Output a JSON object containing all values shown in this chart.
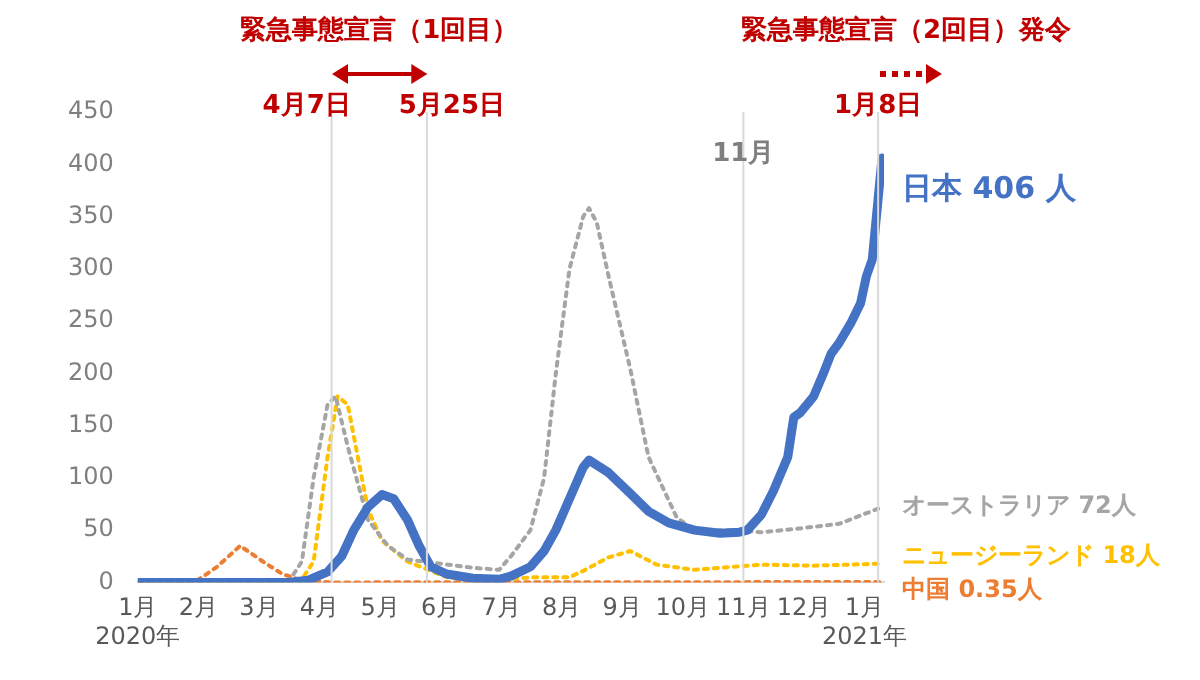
{
  "chart_data": {
    "type": "line",
    "annotations": [
      "緊急事態宣言（1回目）",
      "緊急事態宣言（2回目）発令",
      {
        "text": "11月",
        "x": "2020-11",
        "y": 410
      }
    ],
    "xlim": [
      "2020-01-01",
      "2021-01-11"
    ],
    "xticks": [
      {
        "value": "2020-01",
        "label": "1月\n2020年"
      },
      {
        "value": "2020-02",
        "label": "2月"
      },
      {
        "value": "2020-03",
        "label": "3月"
      },
      {
        "value": "2020-04",
        "label": "4月"
      },
      {
        "value": "2020-05",
        "label": "5月"
      },
      {
        "value": "2020-06",
        "label": "6月"
      },
      {
        "value": "2020-07",
        "label": "7月"
      },
      {
        "value": "2020-08",
        "label": "8月"
      },
      {
        "value": "2020-09",
        "label": "9月"
      },
      {
        "value": "2020-10",
        "label": "10月"
      },
      {
        "value": "2020-11",
        "label": "11月"
      },
      {
        "value": "2020-12",
        "label": "12月"
      },
      {
        "value": "2021-01",
        "label": "1月\n2021年"
      }
    ],
    "ylim": [
      0,
      450
    ],
    "yticks": [
      0,
      50,
      100,
      150,
      200,
      250,
      300,
      350,
      400,
      450
    ],
    "ref_lines": [
      {
        "axis": "x",
        "value": "2020-04-07",
        "label": "4月7日",
        "color": "#d9d9d9"
      },
      {
        "axis": "x",
        "value": "2020-05-25",
        "label": "5月25日",
        "color": "#d9d9d9"
      },
      {
        "axis": "x",
        "value": "2020-11-01",
        "color": "#d9d9d9"
      },
      {
        "axis": "x",
        "value": "2021-01-08",
        "label": "1月8日",
        "color": "#d9d9d9"
      }
    ],
    "legend": false,
    "marker": "none",
    "series": [
      {
        "name": "日本 406 人",
        "color": "#4472c4",
        "line_style": "solid",
        "x": [
          "2020-01-01",
          "2020-03-16",
          "2020-03-26",
          "2020-04-05",
          "2020-04-12",
          "2020-04-18",
          "2020-04-25",
          "2020-05-02",
          "2020-05-08",
          "2020-05-15",
          "2020-05-21",
          "2020-05-27",
          "2020-06-04",
          "2020-06-17",
          "2020-06-30",
          "2020-07-06",
          "2020-07-16",
          "2020-07-23",
          "2020-07-29",
          "2020-08-05",
          "2020-08-12",
          "2020-08-15",
          "2020-08-25",
          "2020-09-05",
          "2020-09-14",
          "2020-09-24",
          "2020-10-07",
          "2020-10-20",
          "2020-10-30",
          "2020-11-03",
          "2020-11-10",
          "2020-11-16",
          "2020-11-23",
          "2020-11-26",
          "2020-11-29",
          "2020-12-06",
          "2020-12-11",
          "2020-12-15",
          "2020-12-19",
          "2020-12-25",
          "2020-12-30",
          "2021-01-02",
          "2021-01-05",
          "2021-01-10"
        ],
        "values": [
          0,
          0,
          2,
          10,
          25,
          50,
          72,
          84,
          80,
          60,
          35,
          15,
          8,
          4,
          3,
          6,
          15,
          30,
          50,
          80,
          110,
          117,
          105,
          85,
          68,
          57,
          50,
          47,
          48,
          50,
          65,
          88,
          120,
          158,
          162,
          178,
          200,
          219,
          229,
          248,
          267,
          293,
          309,
          406
        ]
      },
      {
        "name": "オーストラリア 72人",
        "color": "#a5a5a5",
        "line_style": "dotted",
        "x": [
          "2020-01-01",
          "2020-03-16",
          "2020-03-23",
          "2020-03-29",
          "2020-04-05",
          "2020-04-09",
          "2020-04-15",
          "2020-04-25",
          "2020-05-05",
          "2020-05-15",
          "2020-06-17",
          "2020-06-30",
          "2020-07-06",
          "2020-07-16",
          "2020-07-23",
          "2020-07-29",
          "2020-08-05",
          "2020-08-12",
          "2020-08-15",
          "2020-08-19",
          "2020-08-25",
          "2020-09-05",
          "2020-09-14",
          "2020-09-28",
          "2020-10-07",
          "2020-10-27",
          "2020-11-10",
          "2020-11-26",
          "2020-12-19",
          "2021-01-10"
        ],
        "values": [
          0,
          0,
          20,
          100,
          170,
          178,
          130,
          60,
          35,
          22,
          14,
          12,
          25,
          50,
          100,
          200,
          300,
          350,
          358,
          344,
          293,
          204,
          120,
          62,
          50,
          50,
          48,
          51,
          56,
          72
        ]
      },
      {
        "name": "ニュージーランド 18人",
        "color": "#ffc000",
        "line_style": "dotted",
        "x": [
          "2020-01-01",
          "2020-03-22",
          "2020-03-29",
          "2020-04-05",
          "2020-04-10",
          "2020-04-15",
          "2020-04-18",
          "2020-04-25",
          "2020-05-02",
          "2020-05-15",
          "2020-06-04",
          "2020-06-23",
          "2020-07-19",
          "2020-08-05",
          "2020-08-12",
          "2020-08-25",
          "2020-09-05",
          "2020-09-18",
          "2020-10-07",
          "2020-10-27",
          "2020-11-10",
          "2020-12-06",
          "2021-01-10"
        ],
        "values": [
          0,
          0,
          20,
          120,
          178,
          170,
          140,
          70,
          40,
          20,
          5,
          2,
          5,
          5,
          11,
          24,
          30,
          17,
          12,
          15,
          17,
          16,
          18
        ]
      },
      {
        "name": "中国 0.35人",
        "color": "#ed7d31",
        "line_style": "dotted",
        "x": [
          "2020-01-01",
          "2020-01-30",
          "2020-02-10",
          "2020-02-21",
          "2020-03-03",
          "2020-03-13",
          "2020-03-23",
          "2020-04-07",
          "2021-01-10"
        ],
        "values": [
          0,
          0,
          15,
          35,
          20,
          8,
          2,
          0,
          0.35
        ]
      }
    ]
  }
}
